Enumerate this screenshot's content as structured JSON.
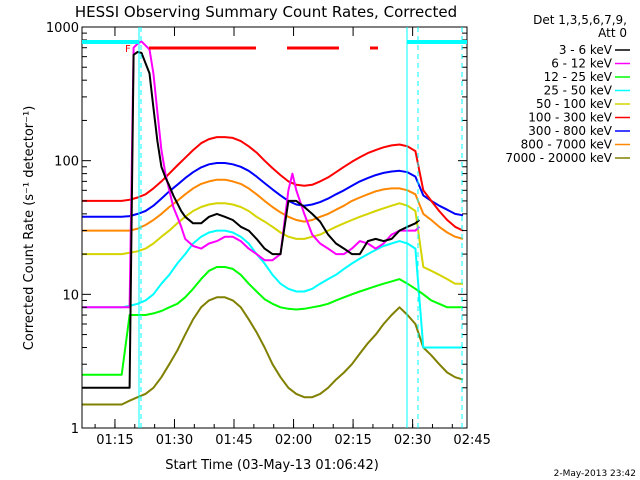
{
  "chart_data": {
    "type": "line",
    "title": "HESSI Observing Summary Count Rates, Corrected",
    "xlabel": "Start Time (03-May-13 01:06:42)",
    "ylabel": "Corrected Count Rate (s⁻¹ detector⁻¹)",
    "y_scale": "log",
    "ylim": [
      1,
      1000
    ],
    "xlim_minutes_after_start": [
      0,
      97
    ],
    "x_ticks": [
      {
        "label": "01:15",
        "min": 8.3
      },
      {
        "label": "01:30",
        "min": 23.3
      },
      {
        "label": "01:45",
        "min": 38.3
      },
      {
        "label": "02:00",
        "min": 53.3
      },
      {
        "label": "02:15",
        "min": 68.3
      },
      {
        "label": "02:30",
        "min": 83.3
      },
      {
        "label": "02:45",
        "min": 98.3
      }
    ],
    "y_ticks": [
      {
        "label": "1",
        "value": 1
      },
      {
        "label": "10",
        "value": 10
      },
      {
        "label": "100",
        "value": 100
      },
      {
        "label": "1000",
        "value": 1000
      }
    ],
    "legend_header": [
      "Det 1,3,5,6,7,9,",
      "Att 0"
    ],
    "legend_placement": "right",
    "footer": "2-May-2013 23:42",
    "flag_label": "F",
    "series": [
      {
        "name": "3 - 6 keV",
        "color": "#000000",
        "x": [
          0,
          12,
          13,
          14,
          15,
          17,
          18,
          19,
          20,
          21,
          22,
          23,
          24,
          25,
          26,
          28,
          30,
          32,
          34,
          36,
          38,
          40,
          42,
          44,
          46,
          48,
          50,
          52,
          54,
          56,
          58,
          60,
          62,
          64,
          66,
          68,
          70,
          72,
          74,
          76,
          78,
          80,
          82,
          84,
          85
        ],
        "y": [
          2,
          2,
          620,
          650,
          640,
          450,
          250,
          140,
          90,
          75,
          65,
          55,
          48,
          42,
          38,
          34,
          34,
          38,
          40,
          38,
          36,
          32,
          30,
          26,
          22,
          20,
          20,
          50,
          50,
          45,
          40,
          35,
          28,
          24,
          22,
          20,
          20,
          25,
          26,
          25,
          26,
          30,
          32,
          34,
          36
        ]
      },
      {
        "name": "6 - 12 keV",
        "color": "#ff00ff",
        "x": [
          0,
          12,
          13,
          14,
          15,
          17,
          18,
          19,
          20,
          21,
          22,
          23,
          24,
          25,
          26,
          28,
          30,
          32,
          34,
          36,
          38,
          40,
          42,
          44,
          46,
          48,
          50,
          52,
          53,
          54,
          56,
          58,
          60,
          62,
          64,
          66,
          68,
          70,
          72,
          74,
          76,
          78,
          80,
          82,
          84,
          85
        ],
        "y": [
          8,
          8,
          700,
          750,
          780,
          680,
          450,
          230,
          120,
          80,
          60,
          45,
          38,
          32,
          26,
          23,
          22,
          24,
          25,
          27,
          27,
          25,
          22,
          20,
          18,
          18,
          20,
          60,
          80,
          60,
          40,
          28,
          24,
          22,
          20,
          20,
          22,
          25,
          24,
          22,
          24,
          28,
          30,
          30,
          30,
          32
        ]
      },
      {
        "name": "12 - 25 keV",
        "color": "#00ff00",
        "x": [
          0,
          2,
          4,
          6,
          8,
          10,
          12,
          14,
          16,
          18,
          20,
          22,
          24,
          26,
          28,
          30,
          32,
          34,
          36,
          38,
          40,
          42,
          44,
          46,
          48,
          50,
          52,
          54,
          56,
          58,
          60,
          62,
          64,
          66,
          68,
          70,
          72,
          74,
          76,
          78,
          80,
          82,
          84,
          86,
          88,
          90,
          92,
          94,
          96
        ],
        "y": [
          2.5,
          2.5,
          2.5,
          2.5,
          2.5,
          2.5,
          7,
          7,
          7,
          7.2,
          7.5,
          8,
          8.5,
          9.5,
          11,
          13,
          15,
          16,
          16,
          15.5,
          14,
          12,
          10.5,
          9.2,
          8.5,
          8,
          7.8,
          7.7,
          7.8,
          8,
          8.2,
          8.5,
          9,
          9.5,
          10,
          10.5,
          11,
          11.5,
          12,
          12.5,
          13,
          12,
          11,
          10,
          9,
          8.5,
          8,
          8,
          8
        ]
      },
      {
        "name": "25 - 50 keV",
        "color": "#00ffff",
        "x": [
          0,
          2,
          4,
          6,
          8,
          10,
          12,
          14,
          16,
          18,
          20,
          22,
          24,
          26,
          28,
          30,
          32,
          34,
          36,
          38,
          40,
          42,
          44,
          46,
          48,
          50,
          52,
          54,
          56,
          58,
          60,
          62,
          64,
          66,
          68,
          70,
          72,
          74,
          76,
          78,
          80,
          82,
          84,
          86,
          88,
          90,
          92,
          94,
          96
        ],
        "y": [
          8,
          8,
          8,
          8,
          8,
          8,
          8.2,
          8.5,
          9,
          10,
          12,
          14,
          17,
          20,
          24,
          27,
          29,
          30,
          30,
          29,
          27,
          24,
          20,
          17,
          14,
          12,
          11,
          10.5,
          10.5,
          11,
          12,
          13,
          14,
          15.5,
          17,
          18.5,
          20,
          21.5,
          23,
          24,
          25,
          24,
          22,
          4,
          4,
          4,
          4,
          4,
          4
        ]
      },
      {
        "name": "50 - 100 keV",
        "color": "#d4d400",
        "x": [
          0,
          2,
          4,
          6,
          8,
          10,
          12,
          14,
          16,
          18,
          20,
          22,
          24,
          26,
          28,
          30,
          32,
          34,
          36,
          38,
          40,
          42,
          44,
          46,
          48,
          50,
          52,
          54,
          56,
          58,
          60,
          62,
          64,
          66,
          68,
          70,
          72,
          74,
          76,
          78,
          80,
          82,
          84,
          86,
          88,
          90,
          92,
          94,
          96
        ],
        "y": [
          20,
          20,
          20,
          20,
          20,
          20,
          20.5,
          21,
          22,
          24,
          27,
          30,
          34,
          38,
          42,
          45,
          47,
          48,
          48,
          47,
          45,
          42,
          38,
          35,
          32,
          29,
          27,
          26,
          26,
          27,
          28,
          30,
          32,
          34,
          36,
          38,
          40,
          42,
          44,
          46,
          48,
          46,
          42,
          16,
          15,
          14,
          13,
          12,
          12
        ]
      },
      {
        "name": "100 - 300 keV",
        "color": "#ff0000",
        "x": [
          0,
          2,
          4,
          6,
          8,
          10,
          12,
          14,
          16,
          18,
          20,
          22,
          24,
          26,
          28,
          30,
          32,
          34,
          36,
          38,
          40,
          42,
          44,
          46,
          48,
          50,
          52,
          54,
          56,
          58,
          60,
          62,
          64,
          66,
          68,
          70,
          72,
          74,
          76,
          78,
          80,
          82,
          84,
          86,
          88,
          90,
          92,
          94,
          96
        ],
        "y": [
          50,
          50,
          50,
          50,
          50,
          50,
          51,
          53,
          56,
          62,
          70,
          80,
          92,
          105,
          120,
          135,
          145,
          150,
          150,
          148,
          140,
          128,
          115,
          100,
          88,
          78,
          70,
          66,
          65,
          66,
          70,
          75,
          82,
          90,
          98,
          106,
          114,
          120,
          126,
          130,
          132,
          128,
          118,
          60,
          50,
          42,
          36,
          32,
          30
        ]
      },
      {
        "name": "300 - 800 keV",
        "color": "#0000ff",
        "x": [
          0,
          2,
          4,
          6,
          8,
          10,
          12,
          14,
          16,
          18,
          20,
          22,
          24,
          26,
          28,
          30,
          32,
          34,
          36,
          38,
          40,
          42,
          44,
          46,
          48,
          50,
          52,
          54,
          56,
          58,
          60,
          62,
          64,
          66,
          68,
          70,
          72,
          74,
          76,
          78,
          80,
          82,
          84,
          86,
          88,
          90,
          92,
          94,
          96
        ],
        "y": [
          38,
          38,
          38,
          38,
          38,
          38,
          38.5,
          40,
          42,
          46,
          52,
          59,
          66,
          74,
          82,
          89,
          94,
          96,
          96,
          94,
          90,
          84,
          76,
          68,
          61,
          55,
          50,
          47,
          46,
          47,
          49,
          52,
          56,
          60,
          65,
          70,
          74,
          78,
          81,
          83,
          84,
          82,
          76,
          55,
          50,
          46,
          43,
          40,
          39
        ]
      },
      {
        "name": "800 - 7000 keV",
        "color": "#ff8800",
        "x": [
          0,
          2,
          4,
          6,
          8,
          10,
          12,
          14,
          16,
          18,
          20,
          22,
          24,
          26,
          28,
          30,
          32,
          34,
          36,
          38,
          40,
          42,
          44,
          46,
          48,
          50,
          52,
          54,
          56,
          58,
          60,
          62,
          64,
          66,
          68,
          70,
          72,
          74,
          76,
          78,
          80,
          82,
          84,
          86,
          88,
          90,
          92,
          94,
          96
        ],
        "y": [
          30,
          30,
          30,
          30,
          30,
          30,
          30,
          31,
          33,
          36,
          40,
          45,
          50,
          56,
          62,
          67,
          70,
          72,
          72,
          70,
          67,
          62,
          56,
          50,
          45,
          41,
          38,
          36,
          35,
          36,
          38,
          40,
          43,
          46,
          50,
          53,
          56,
          59,
          61,
          62,
          62,
          60,
          56,
          40,
          36,
          32,
          29,
          27,
          26
        ]
      },
      {
        "name": "7000 - 20000 keV",
        "color": "#808000",
        "x": [
          0,
          2,
          4,
          6,
          8,
          10,
          12,
          14,
          16,
          18,
          20,
          22,
          24,
          26,
          28,
          30,
          32,
          34,
          36,
          38,
          40,
          42,
          44,
          46,
          48,
          50,
          52,
          54,
          56,
          58,
          60,
          62,
          64,
          66,
          68,
          70,
          72,
          74,
          76,
          78,
          80,
          82,
          84,
          86,
          88,
          90,
          92,
          94,
          96
        ],
        "y": [
          1.5,
          1.5,
          1.5,
          1.5,
          1.5,
          1.5,
          1.6,
          1.7,
          1.8,
          2,
          2.4,
          3,
          3.8,
          5,
          6.5,
          8,
          9,
          9.5,
          9.5,
          9,
          8,
          6.5,
          5.2,
          4,
          3,
          2.4,
          2,
          1.8,
          1.7,
          1.7,
          1.8,
          2,
          2.3,
          2.6,
          3,
          3.6,
          4.3,
          5,
          6,
          7,
          8,
          7,
          6,
          4,
          3.5,
          3,
          2.6,
          2.4,
          2.3
        ]
      }
    ]
  }
}
